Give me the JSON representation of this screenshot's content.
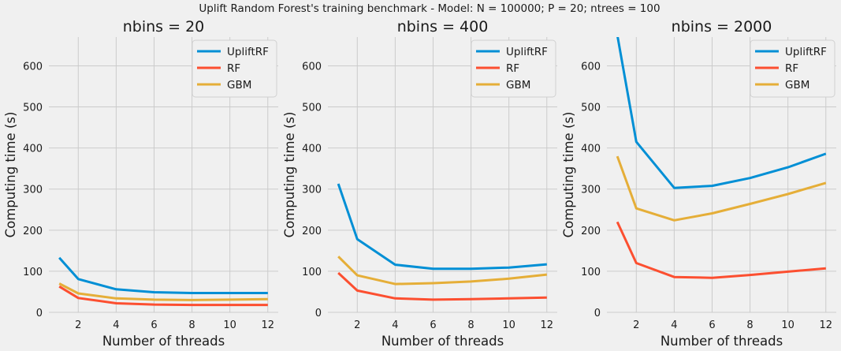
{
  "suptitle": "Uplift Random Forest's training benchmark - Model: N = 100000; P = 20; ntrees = 100",
  "colors": {
    "background": "#f0f0f0",
    "grid": "#cbcbcb",
    "UpliftRF": "#008fd5",
    "RF": "#fc4f30",
    "GBM": "#e5ae38"
  },
  "chart_data": [
    {
      "type": "line",
      "title": "nbins = 20",
      "xlabel": "Number of threads",
      "ylabel": "Computing time (s)",
      "xlim": [
        0.45,
        12.55
      ],
      "ylim": [
        0,
        670
      ],
      "xticks": [
        2,
        4,
        6,
        8,
        10,
        12
      ],
      "yticks": [
        0,
        100,
        200,
        300,
        400,
        500,
        600
      ],
      "grid": true,
      "legend": "top-right",
      "x": [
        1,
        2,
        4,
        6,
        8,
        10,
        12
      ],
      "series": [
        {
          "name": "UpliftRF",
          "values": [
            133,
            81,
            56,
            49,
            47,
            47,
            47
          ]
        },
        {
          "name": "RF",
          "values": [
            63,
            35,
            22,
            19,
            18,
            18,
            18
          ]
        },
        {
          "name": "GBM",
          "values": [
            70,
            46,
            34,
            31,
            30,
            31,
            32
          ]
        }
      ]
    },
    {
      "type": "line",
      "title": "nbins = 400",
      "xlabel": "Number of threads",
      "ylabel": "Computing time (s)",
      "xlim": [
        0.45,
        12.55
      ],
      "ylim": [
        0,
        670
      ],
      "xticks": [
        2,
        4,
        6,
        8,
        10,
        12
      ],
      "yticks": [
        0,
        100,
        200,
        300,
        400,
        500,
        600
      ],
      "grid": true,
      "legend": "top-right",
      "x": [
        1,
        2,
        4,
        6,
        8,
        10,
        12
      ],
      "series": [
        {
          "name": "UpliftRF",
          "values": [
            313,
            178,
            116,
            106,
            106,
            109,
            117
          ]
        },
        {
          "name": "RF",
          "values": [
            96,
            53,
            34,
            31,
            32,
            34,
            36
          ]
        },
        {
          "name": "GBM",
          "values": [
            136,
            90,
            69,
            71,
            75,
            82,
            92
          ]
        }
      ]
    },
    {
      "type": "line",
      "title": "nbins = 2000",
      "xlabel": "Number of threads",
      "ylabel": "Computing time (s)",
      "xlim": [
        0.45,
        12.55
      ],
      "ylim": [
        0,
        670
      ],
      "xticks": [
        2,
        4,
        6,
        8,
        10,
        12
      ],
      "yticks": [
        0,
        100,
        200,
        300,
        400,
        500,
        600
      ],
      "grid": true,
      "legend": "top-right",
      "x": [
        1,
        2,
        4,
        6,
        8,
        10,
        12
      ],
      "series": [
        {
          "name": "UpliftRF",
          "values": [
            675,
            415,
            303,
            308,
            327,
            353,
            386
          ]
        },
        {
          "name": "RF",
          "values": [
            220,
            120,
            86,
            84,
            91,
            99,
            107
          ]
        },
        {
          "name": "GBM",
          "values": [
            380,
            253,
            224,
            241,
            264,
            288,
            315
          ]
        }
      ]
    }
  ]
}
